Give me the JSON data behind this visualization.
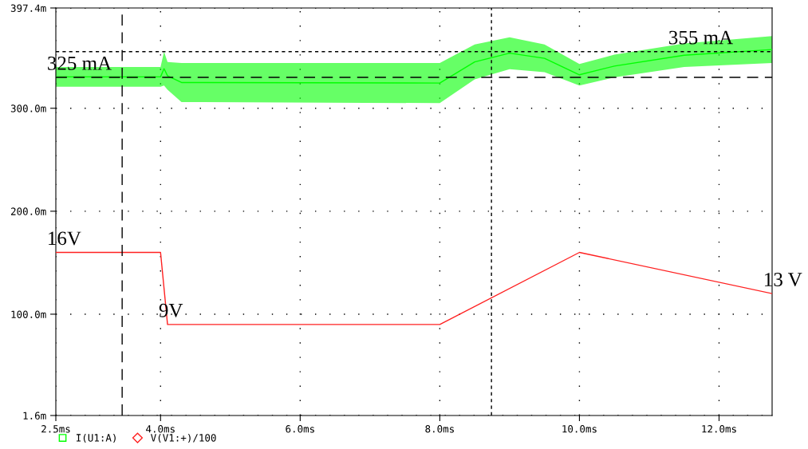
{
  "chart_data": {
    "type": "line",
    "series": [
      {
        "name": "I(U1:A)",
        "color": "#00ff00",
        "x": [
          2.5,
          4.0,
          4.05,
          4.1,
          4.3,
          8.0,
          8.5,
          9.0,
          9.5,
          10.0,
          10.5,
          11.5,
          12.76
        ],
        "values": [
          330.5,
          330.5,
          338.5,
          331.5,
          325,
          324.5,
          345,
          353.5,
          348.5,
          332.5,
          341,
          351.5,
          357
        ],
        "lower": [
          321,
          321,
          322,
          318,
          306,
          305,
          328,
          338,
          335,
          322,
          330,
          340,
          344
        ],
        "upper": [
          340,
          340,
          355,
          345,
          344,
          344,
          362,
          369,
          362,
          343,
          352,
          363,
          370
        ]
      },
      {
        "name": "V(V1:+)/100",
        "color": "#ff2020",
        "x": [
          2.5,
          4.0,
          4.1,
          8.0,
          10.0,
          12.76
        ],
        "values": [
          160,
          160,
          90,
          90,
          160,
          120
        ]
      }
    ],
    "xlim": [
      2.5,
      12.76
    ],
    "ylim": [
      1.6,
      397.4
    ],
    "xticks": [
      {
        "value": 2.5,
        "label": "2.5ms"
      },
      {
        "value": 4.0,
        "label": "4.0ms"
      },
      {
        "value": 6.0,
        "label": "6.0ms"
      },
      {
        "value": 8.0,
        "label": "8.0ms"
      },
      {
        "value": 10.0,
        "label": "10.0ms"
      },
      {
        "value": 12.0,
        "label": "12.0ms"
      }
    ],
    "yticks": [
      {
        "value": 1.6,
        "label": "1.6m"
      },
      {
        "value": 100,
        "label": "100.0m"
      },
      {
        "value": 200,
        "label": "200.0m"
      },
      {
        "value": 300,
        "label": "300.0m"
      },
      {
        "value": 397.4,
        "label": "397.4m"
      }
    ],
    "ref_lines": [
      {
        "axis": "x",
        "value": 3.45,
        "color": "#000000",
        "line_style": "dashed"
      },
      {
        "axis": "x",
        "value": 8.74,
        "color": "#000000",
        "line_style": "dotted"
      },
      {
        "axis": "y",
        "value": 355,
        "color": "#000000",
        "line_style": "dotted"
      },
      {
        "axis": "y",
        "value": 330,
        "color": "#000000",
        "line_style": "dashed"
      }
    ],
    "annotations": [
      {
        "text": "325 mA",
        "x": 2.5,
        "y": 330
      },
      {
        "text": "355 mA",
        "x": 11.4,
        "y": 355
      },
      {
        "text": "16V",
        "x": 2.5,
        "y": 160
      },
      {
        "text": "9V",
        "x": 4.1,
        "y": 90
      },
      {
        "text": "13 V",
        "x": 12.76,
        "y": 120
      }
    ],
    "grid": true,
    "legend": "bottom left",
    "line_style": "solid"
  }
}
